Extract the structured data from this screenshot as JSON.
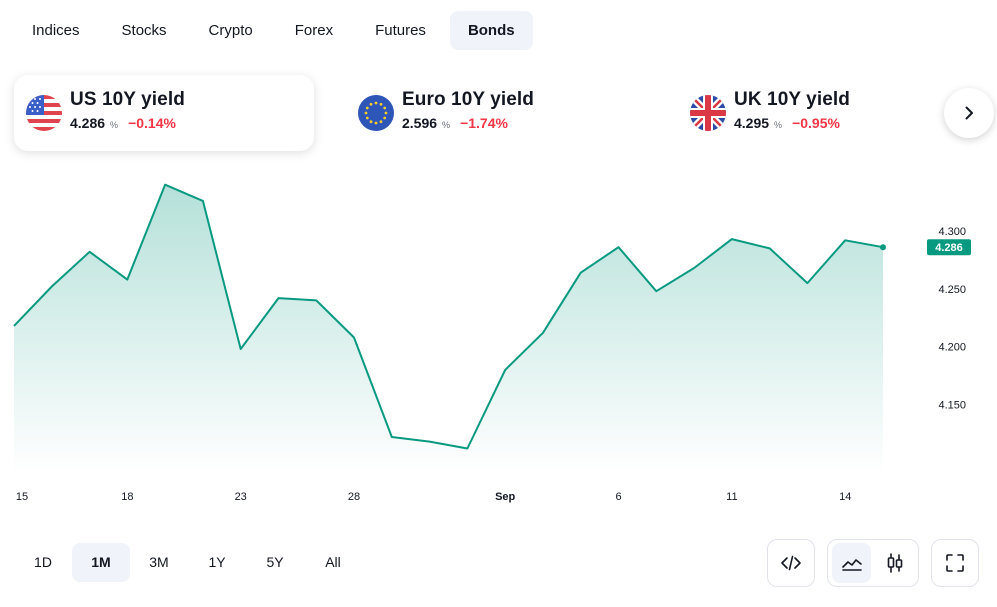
{
  "tabs": [
    {
      "label": "Indices",
      "active": false
    },
    {
      "label": "Stocks",
      "active": false
    },
    {
      "label": "Crypto",
      "active": false
    },
    {
      "label": "Forex",
      "active": false
    },
    {
      "label": "Futures",
      "active": false
    },
    {
      "label": "Bonds",
      "active": true
    }
  ],
  "tickers": [
    {
      "name": "US 10Y yield",
      "value": "4.286",
      "unit": "%",
      "change": "−0.14%",
      "flag": "us-flag-icon",
      "active": true
    },
    {
      "name": "Euro 10Y yield",
      "value": "2.596",
      "unit": "%",
      "change": "−1.74%",
      "flag": "eu-flag-icon",
      "active": false
    },
    {
      "name": "UK 10Y yield",
      "value": "4.295",
      "unit": "%",
      "change": "−0.95%",
      "flag": "uk-flag-icon",
      "active": false
    }
  ],
  "next_icon": "chevron-right-icon",
  "chart_data": {
    "type": "area",
    "series": [
      {
        "values": [
          4.218,
          4.252,
          4.282,
          4.258,
          4.34,
          4.326,
          4.198,
          4.242,
          4.24,
          4.208,
          4.122,
          4.118,
          4.112,
          4.18,
          4.212,
          4.264,
          4.286,
          4.248,
          4.268,
          4.293,
          4.285,
          4.255,
          4.292,
          4.286
        ]
      }
    ],
    "x_tick_labels": [
      "15",
      "18",
      "23",
      "28",
      "Sep",
      "6",
      "11",
      "14"
    ],
    "y_tick_labels": [
      "4.300",
      "4.250",
      "4.200",
      "4.150"
    ],
    "y_ticks": [
      4.3,
      4.25,
      4.2,
      4.15
    ],
    "ylim": [
      4.09,
      4.37
    ],
    "last_value_label": "4.286",
    "line_color": "#089981",
    "fill_color": "#089981"
  },
  "ranges": [
    {
      "label": "1D",
      "active": false
    },
    {
      "label": "1M",
      "active": true
    },
    {
      "label": "3M",
      "active": false
    },
    {
      "label": "1Y",
      "active": false
    },
    {
      "label": "5Y",
      "active": false
    },
    {
      "label": "All",
      "active": false
    }
  ],
  "tools": {
    "embed_icon": "code-embed-icon",
    "area_icon": "area-chart-icon",
    "candles_icon": "candlestick-icon",
    "fullscreen_icon": "fullscreen-icon"
  }
}
